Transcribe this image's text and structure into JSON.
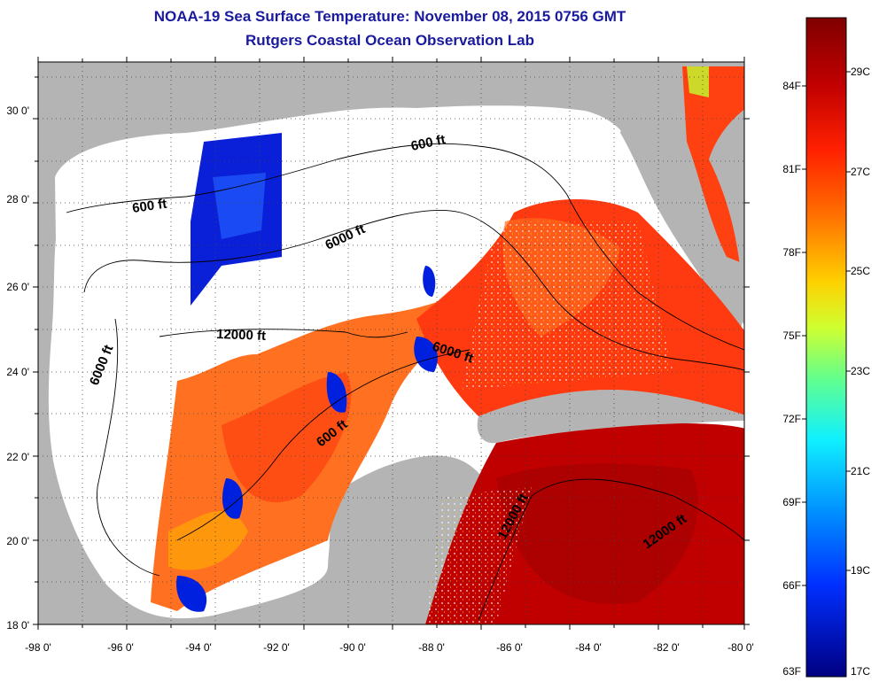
{
  "header": {
    "title": "NOAA-19 Sea Surface Temperature:  November 08, 2015 0756 GMT",
    "subtitle": "Rutgers Coastal Ocean Observation Lab"
  },
  "map": {
    "lon_labels": [
      "-98 0'",
      "-96 0'",
      "-94 0'",
      "-92 0'",
      "-90 0'",
      "-88 0'",
      "-86 0'",
      "-84 0'",
      "-82 0'",
      "-80 0'"
    ],
    "lat_labels": [
      "30 0'",
      "28 0'",
      "26 0'",
      "24 0'",
      "22 0'",
      "20 0'",
      "18 0'"
    ],
    "lon_range": [
      -98,
      -80
    ],
    "lat_range": [
      18,
      31.3
    ],
    "contour_labels": [
      "600 ft",
      "600 ft",
      "6000 ft",
      "12000 ft",
      "6000 ft",
      "6000 ft",
      "600 ft",
      "12000 ft",
      "12000 ft"
    ]
  },
  "colorbar": {
    "fahrenheit_labels": [
      "84F",
      "81F",
      "78F",
      "75F",
      "72F",
      "69F",
      "66F",
      "63F"
    ],
    "celsius_labels": [
      "29C",
      "27C",
      "25C",
      "23C",
      "21C",
      "19C",
      "17C"
    ],
    "colors": [
      "#800000",
      "#c00000",
      "#ff2000",
      "#ff6000",
      "#ffa000",
      "#ffe000",
      "#c0ff30",
      "#60ff90",
      "#10f0ff",
      "#00a0ff",
      "#0050ff",
      "#0010d0",
      "#000080"
    ]
  },
  "colors": {
    "land": "#b4b4b4",
    "water_nodata": "#ffffff",
    "title": "#1a1a9e"
  }
}
